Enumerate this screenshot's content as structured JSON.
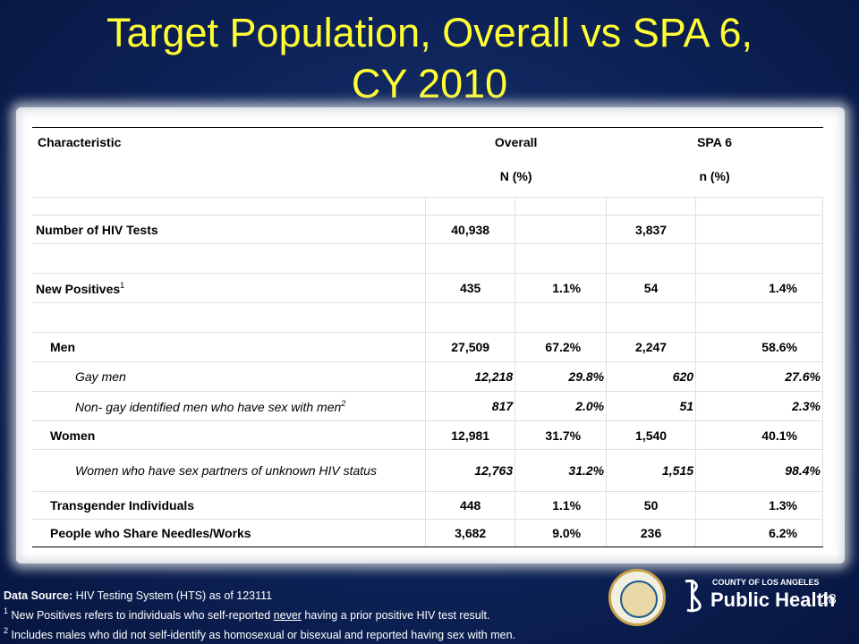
{
  "title_line1": "Target Population, Overall vs SPA 6,",
  "title_line2": "CY 2010",
  "header": {
    "characteristic": "Characteristic",
    "overall": "Overall",
    "spa": "SPA 6",
    "overall_sub": "N (%)",
    "spa_sub": "n (%)"
  },
  "rows": {
    "hiv_tests": {
      "label": "Number of HIV Tests",
      "overall_n": "40,938",
      "overall_pct": "",
      "spa_n": "3,837",
      "spa_pct": ""
    },
    "new_positives": {
      "label": "New Positives",
      "sup": "1",
      "overall_n": "435",
      "overall_pct": "1.1%",
      "spa_n": "54",
      "spa_pct": "1.4%"
    },
    "men": {
      "label": "Men",
      "overall_n": "27,509",
      "overall_pct": "67.2%",
      "spa_n": "2,247",
      "spa_pct": "58.6%"
    },
    "gay_men": {
      "label": "Gay men",
      "overall_n": "12,218",
      "overall_pct": "29.8%",
      "spa_n": "620",
      "spa_pct": "27.6%"
    },
    "non_gay": {
      "label": "Non- gay identified men who have sex with men",
      "sup": "2",
      "overall_n": "817",
      "overall_pct": "2.0%",
      "spa_n": "51",
      "spa_pct": "2.3%"
    },
    "women": {
      "label": "Women",
      "overall_n": "12,981",
      "overall_pct": "31.7%",
      "spa_n": "1,540",
      "spa_pct": "40.1%"
    },
    "women_unknown": {
      "label": "Women who have sex partners of unknown HIV status",
      "overall_n": "12,763",
      "overall_pct": "31.2%",
      "spa_n": "1,515",
      "spa_pct": "98.4%"
    },
    "transgender": {
      "label": "Transgender Individuals",
      "overall_n": "448",
      "overall_pct": "1.1%",
      "spa_n": "50",
      "spa_pct": "1.3%"
    },
    "needles": {
      "label": "People who Share Needles/Works",
      "overall_n": "3,682",
      "overall_pct": "9.0%",
      "spa_n": "236",
      "spa_pct": "6.2%"
    }
  },
  "footer": {
    "source_label": "Data Source:",
    "source_text": " HIV Testing System (HTS) as of 123111",
    "note1_num": "1",
    "note1_pre": " New Positives refers to individuals who self-reported ",
    "note1_under": "never",
    "note1_post": " having a prior positive HIV test result.",
    "note2_num": "2",
    "note2_text": " Includes males who did not self-identify as homosexual or bisexual and reported having sex with men."
  },
  "logo": {
    "county": "COUNTY OF LOS ANGELES",
    "name": "Public Health"
  },
  "page_number": "18"
}
